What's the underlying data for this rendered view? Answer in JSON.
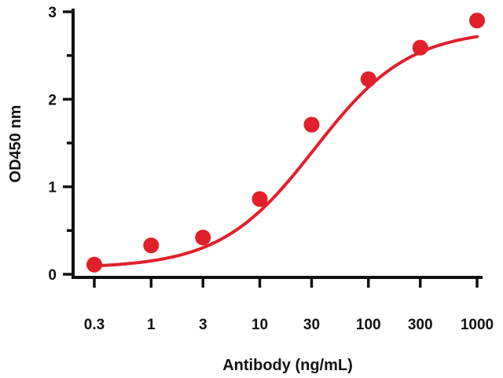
{
  "chart_data": {
    "type": "scatter",
    "title": "",
    "xlabel": "Antibody (ng/mL)",
    "ylabel": "OD450 nm",
    "x_scale": "log",
    "xlim": [
      0.3,
      1000
    ],
    "ylim": [
      0,
      3
    ],
    "x_ticks": [
      0.3,
      1,
      3,
      10,
      30,
      100,
      300,
      1000
    ],
    "x_tick_labels": [
      "0.3",
      "1",
      "3",
      "10",
      "30",
      "100",
      "300",
      "1000"
    ],
    "y_ticks": [
      0,
      1,
      2,
      3
    ],
    "y_tick_labels": [
      "0",
      "1",
      "2",
      "3"
    ],
    "grid": false,
    "legend": "none",
    "color": "#e0202a",
    "series": [
      {
        "x": [
          0.3,
          1,
          3,
          10,
          30,
          100,
          300,
          1000
        ],
        "y": [
          0.11,
          0.33,
          0.42,
          0.86,
          1.71,
          2.23,
          2.59,
          2.9
        ]
      }
    ],
    "fit_curve": {
      "type": "4PL",
      "bottom": 0.07,
      "top": 2.8,
      "ec50": 32,
      "hill": 1.0
    }
  }
}
